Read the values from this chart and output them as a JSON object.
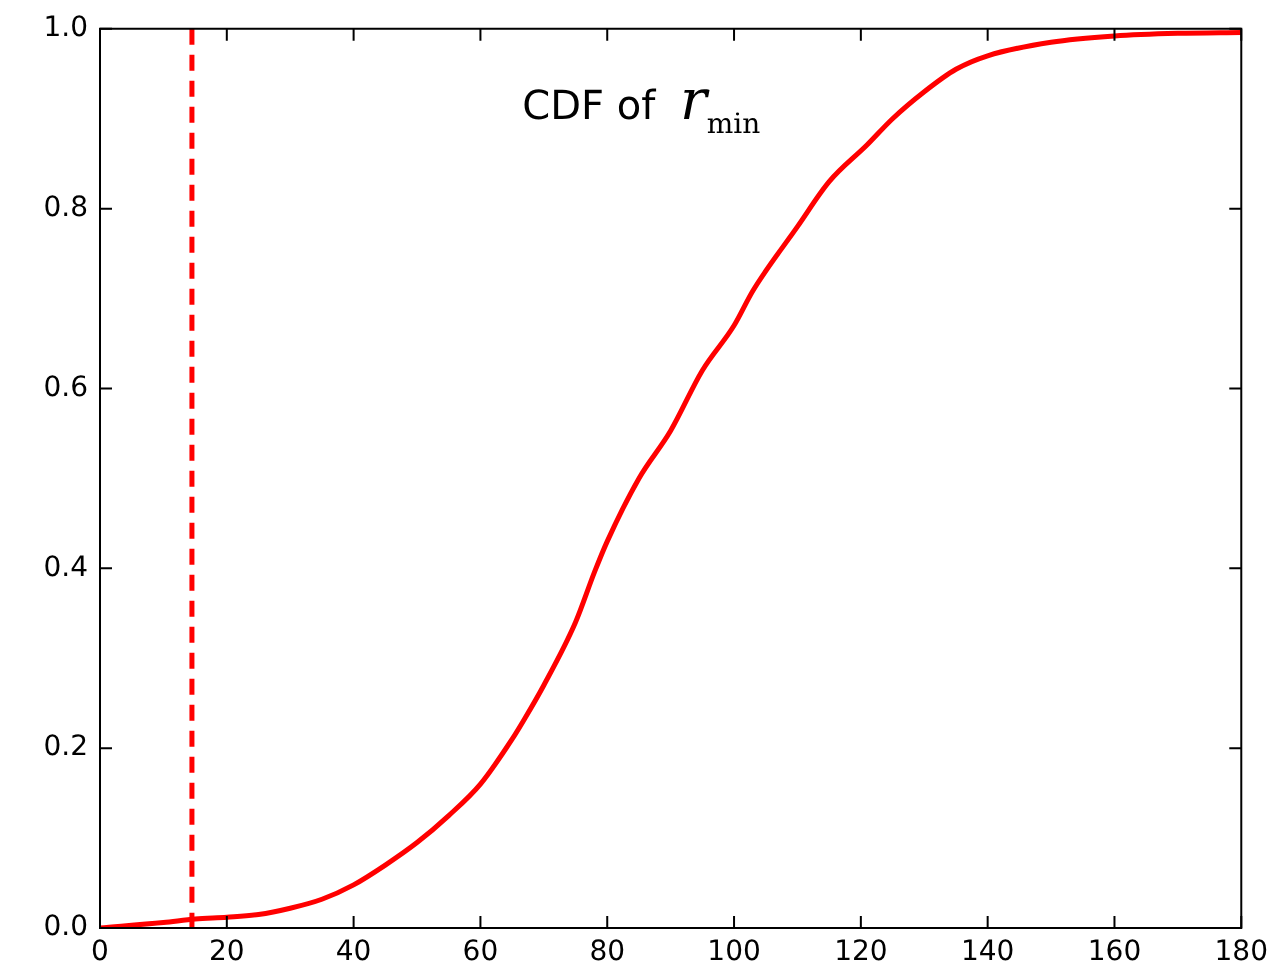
{
  "chart_data": {
    "type": "line",
    "title": "CDF of r$_{min}$",
    "x": [
      0,
      10,
      15,
      20,
      25,
      30,
      35,
      40,
      45,
      50,
      55,
      60,
      65,
      67,
      70,
      75,
      78,
      80,
      85,
      90,
      95,
      100,
      103,
      110,
      115,
      121,
      125,
      130,
      135,
      140,
      150,
      160,
      170,
      180
    ],
    "series": [
      {
        "color": "#ff0000",
        "values": [
          0,
          0.006,
          0.01,
          0.012,
          0.015,
          0.022,
          0.032,
          0.048,
          0.07,
          0.095,
          0.125,
          0.16,
          0.21,
          0.233,
          0.27,
          0.34,
          0.396,
          0.43,
          0.5,
          0.553,
          0.62,
          0.67,
          0.709,
          0.78,
          0.83,
          0.871,
          0.9,
          0.93,
          0.955,
          0.97,
          0.985,
          0.992,
          0.995,
          0.996
        ]
      }
    ],
    "xlim": [
      0,
      180
    ],
    "xticks": [
      0,
      20,
      40,
      60,
      80,
      100,
      120,
      140,
      160,
      180
    ],
    "ylim": [
      0,
      1
    ],
    "yticks": [
      {
        "value": 0,
        "label": "0.0"
      },
      {
        "value": 0.2,
        "label": "0.2"
      },
      {
        "value": 0.4,
        "label": "0.4"
      },
      {
        "value": 0.6,
        "label": "0.6"
      },
      {
        "value": 0.8,
        "label": "0.8"
      },
      {
        "value": 1,
        "label": "1.0"
      }
    ],
    "ref_lines": [
      {
        "axis": "x",
        "value": 14.5,
        "color": "#ff0000",
        "line_style": "dashed"
      }
    ],
    "grid": false,
    "legend": false,
    "marker": "none",
    "line_style": "solid"
  }
}
